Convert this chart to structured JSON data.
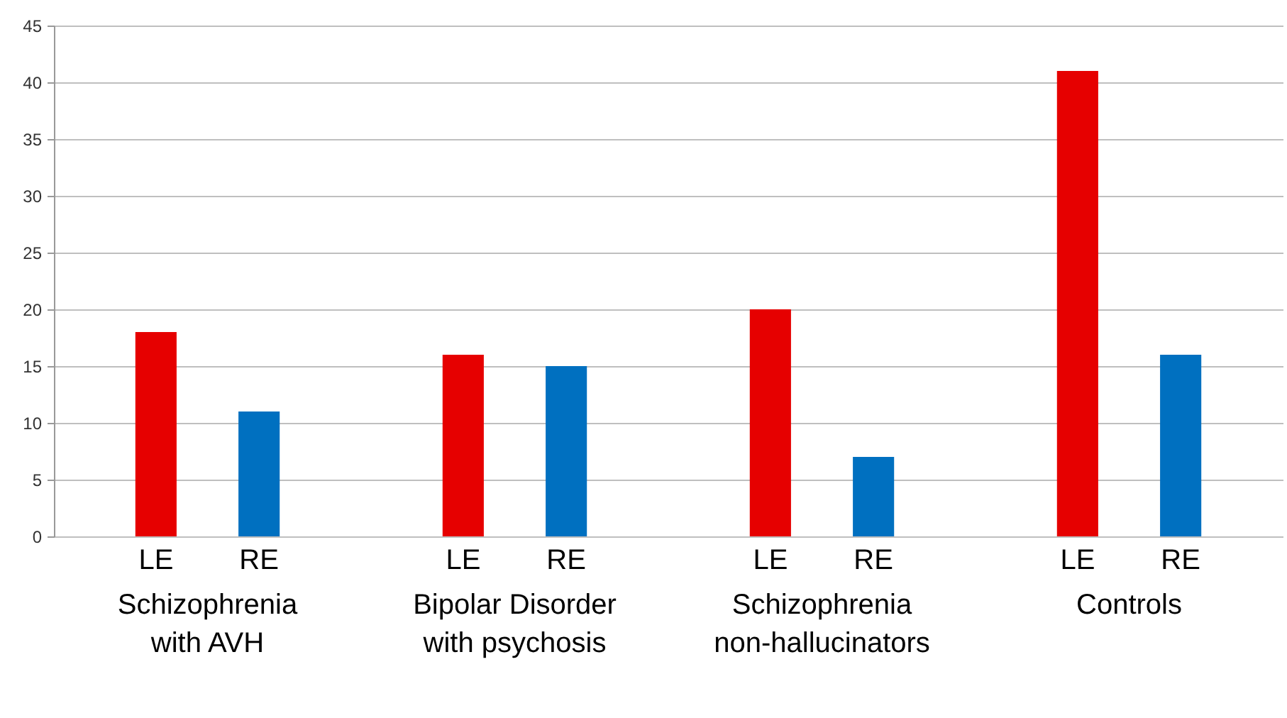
{
  "chart_data": {
    "type": "bar",
    "categories": [
      "Schizophrenia with AVH",
      "Bipolar Disorder with psychosis",
      "Schizophrenia non-hallucinators",
      "Controls"
    ],
    "series": [
      {
        "name": "LE",
        "color": "#e60000",
        "values": [
          18,
          16,
          20,
          41
        ]
      },
      {
        "name": "RE",
        "color": "#0070c0",
        "values": [
          11,
          15,
          7,
          16
        ]
      }
    ],
    "ylim": [
      0,
      45
    ],
    "yticks": [
      0,
      5,
      10,
      15,
      20,
      25,
      30,
      35,
      40,
      45
    ],
    "grid": "y"
  }
}
